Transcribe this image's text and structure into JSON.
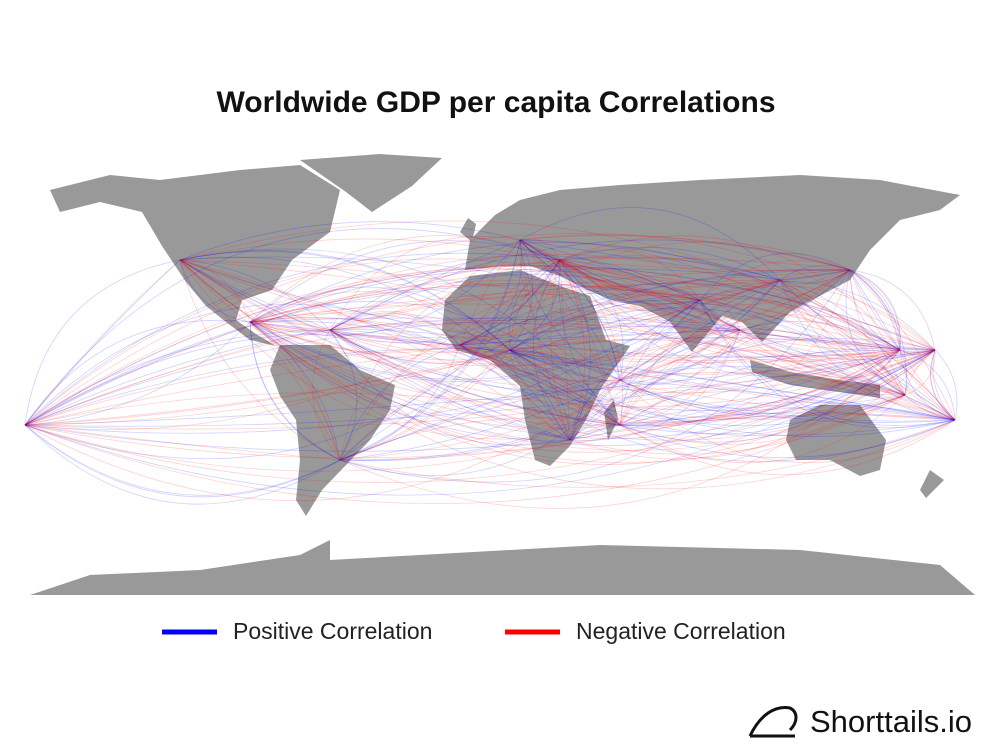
{
  "title": "Worldwide GDP per capita Correlations",
  "legend": [
    {
      "label": "Positive Correlation",
      "color": "#0000ff"
    },
    {
      "label": "Negative Correlation",
      "color": "#ff0000"
    }
  ],
  "brand": "Shorttails.io"
}
